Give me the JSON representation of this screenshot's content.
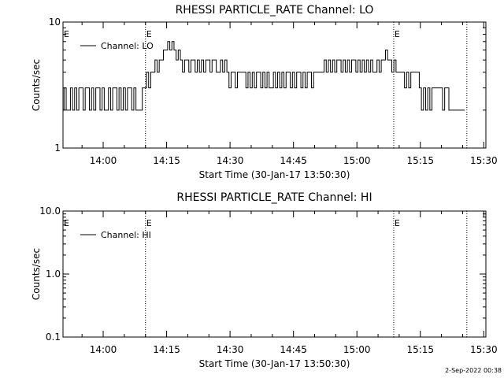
{
  "chart_data": [
    {
      "type": "line",
      "title": "RHESSI PARTICLE_RATE Channel: LO",
      "xlabel": "Start Time (30-Jan-17 13:50:30)",
      "ylabel": "Counts/sec",
      "x_unit": "minutes since 13:50:30",
      "xlim": [
        0,
        100
      ],
      "xticks": [
        {
          "value": 9.5,
          "label": "14:00"
        },
        {
          "value": 24.5,
          "label": "14:15"
        },
        {
          "value": 39.5,
          "label": "14:30"
        },
        {
          "value": 54.5,
          "label": "14:45"
        },
        {
          "value": 69.5,
          "label": "15:00"
        },
        {
          "value": 84.5,
          "label": "15:15"
        },
        {
          "value": 99.5,
          "label": "15:30"
        }
      ],
      "y_scale": "log",
      "ylim": [
        1,
        10
      ],
      "yticks": [
        {
          "value": 1,
          "label": "1"
        },
        {
          "value": 10,
          "label": "10"
        }
      ],
      "vlines": [
        {
          "x": 19.5,
          "label": "E"
        },
        {
          "x": 78.2,
          "label": "E"
        },
        {
          "x": 95.5,
          "label": ""
        }
      ],
      "left_edge_label": "E",
      "legend": {
        "label": "Channel: LO",
        "position": "top-left"
      },
      "series": [
        {
          "name": "Channel: LO",
          "x": [
            0,
            0.5,
            1,
            1.5,
            2,
            2.5,
            3,
            3.5,
            4,
            4.5,
            5,
            5.5,
            6,
            6.5,
            7,
            7.5,
            8,
            8.5,
            9,
            9.5,
            10,
            10.5,
            11,
            11.5,
            12,
            12.5,
            13,
            13.5,
            14,
            14.5,
            15,
            15.5,
            16,
            16.5,
            17,
            17.5,
            18,
            18.5,
            19,
            19.5,
            20,
            20.5,
            21,
            21.5,
            22,
            22.5,
            23,
            23.5,
            24,
            24.5,
            25,
            25.5,
            26,
            26.5,
            27,
            27.5,
            28,
            28.5,
            29,
            29.5,
            30,
            30.5,
            31,
            31.5,
            32,
            32.5,
            33,
            33.5,
            34,
            34.5,
            35,
            35.5,
            36,
            36.5,
            37,
            37.5,
            38,
            38.5,
            39,
            39.5,
            40,
            40.5,
            41,
            41.5,
            42,
            42.5,
            43,
            43.5,
            44,
            44.5,
            45,
            45.5,
            46,
            46.5,
            47,
            47.5,
            48,
            48.5,
            49,
            49.5,
            50,
            50.5,
            51,
            51.5,
            52,
            52.5,
            53,
            53.5,
            54,
            54.5,
            55,
            55.5,
            56,
            56.5,
            57,
            57.5,
            58,
            58.5,
            59,
            59.5,
            60,
            60.5,
            61,
            61.5,
            62,
            62.5,
            63,
            63.5,
            64,
            64.5,
            65,
            65.5,
            66,
            66.5,
            67,
            67.5,
            68,
            68.5,
            69,
            69.5,
            70,
            70.5,
            71,
            71.5,
            72,
            72.5,
            73,
            73.5,
            74,
            74.5,
            75,
            75.5,
            76,
            76.5,
            77,
            77.5,
            78,
            78.5,
            79,
            79.5,
            80,
            80.5,
            81,
            81.5,
            82,
            82.5,
            83,
            83.5,
            84,
            84.5,
            85,
            85.5,
            86,
            86.5,
            87,
            87.5,
            88,
            88.5,
            89,
            89.5,
            90,
            90.5,
            91,
            91.5,
            92,
            92.5,
            93,
            93.5,
            94,
            94.5,
            95
          ],
          "y": [
            2,
            3,
            2,
            2,
            3,
            2,
            3,
            2,
            3,
            3,
            2,
            3,
            3,
            2,
            3,
            2,
            3,
            3,
            2,
            3,
            2,
            2,
            3,
            2,
            3,
            3,
            2,
            3,
            2,
            3,
            2,
            3,
            3,
            2,
            3,
            2,
            2,
            2,
            3,
            3,
            4,
            3,
            4,
            4,
            5,
            4,
            5,
            5,
            6,
            6,
            7,
            6,
            7,
            6,
            5,
            6,
            5,
            4,
            5,
            5,
            4,
            5,
            5,
            4,
            5,
            4,
            5,
            4,
            5,
            5,
            4,
            5,
            5,
            4,
            4,
            5,
            4,
            5,
            4,
            3,
            4,
            4,
            3,
            4,
            4,
            4,
            4,
            3,
            4,
            3,
            4,
            3,
            4,
            4,
            3,
            4,
            3,
            4,
            3,
            3,
            4,
            3,
            4,
            3,
            4,
            3,
            4,
            4,
            3,
            4,
            3,
            4,
            4,
            3,
            4,
            3,
            4,
            4,
            3,
            4,
            4,
            4,
            4,
            4,
            5,
            4,
            5,
            4,
            5,
            4,
            5,
            5,
            4,
            5,
            4,
            5,
            4,
            5,
            5,
            4,
            5,
            4,
            5,
            4,
            5,
            4,
            5,
            4,
            4,
            5,
            4,
            5,
            5,
            6,
            5,
            5,
            4,
            5,
            4,
            4,
            4,
            4,
            3,
            4,
            3,
            4,
            4,
            4,
            4,
            3,
            2,
            3,
            2,
            3,
            2,
            3,
            3,
            3,
            3,
            3,
            2,
            3,
            3,
            2,
            2,
            2,
            2,
            2,
            2,
            2,
            2
          ]
        }
      ]
    },
    {
      "type": "line",
      "title": "RHESSI PARTICLE_RATE Channel: HI",
      "xlabel": "Start Time (30-Jan-17 13:50:30)",
      "ylabel": "Counts/sec",
      "x_unit": "minutes since 13:50:30",
      "xlim": [
        0,
        100
      ],
      "xticks": [
        {
          "value": 9.5,
          "label": "14:00"
        },
        {
          "value": 24.5,
          "label": "14:15"
        },
        {
          "value": 39.5,
          "label": "14:30"
        },
        {
          "value": 54.5,
          "label": "14:45"
        },
        {
          "value": 69.5,
          "label": "15:00"
        },
        {
          "value": 84.5,
          "label": "15:15"
        },
        {
          "value": 99.5,
          "label": "15:30"
        }
      ],
      "y_scale": "log",
      "ylim": [
        0.1,
        10
      ],
      "yticks": [
        {
          "value": 0.1,
          "label": "0.1"
        },
        {
          "value": 1,
          "label": "1.0"
        },
        {
          "value": 10,
          "label": "10.0"
        }
      ],
      "vlines": [
        {
          "x": 19.5,
          "label": "E"
        },
        {
          "x": 78.2,
          "label": "E"
        },
        {
          "x": 95.5,
          "label": ""
        }
      ],
      "left_edge_label": "E",
      "legend": {
        "label": "Channel: HI",
        "position": "top-left"
      },
      "series": [
        {
          "name": "Channel: HI",
          "x": [],
          "y": []
        }
      ]
    }
  ],
  "footer": {
    "timestamp": "2-Sep-2022 00:38"
  }
}
